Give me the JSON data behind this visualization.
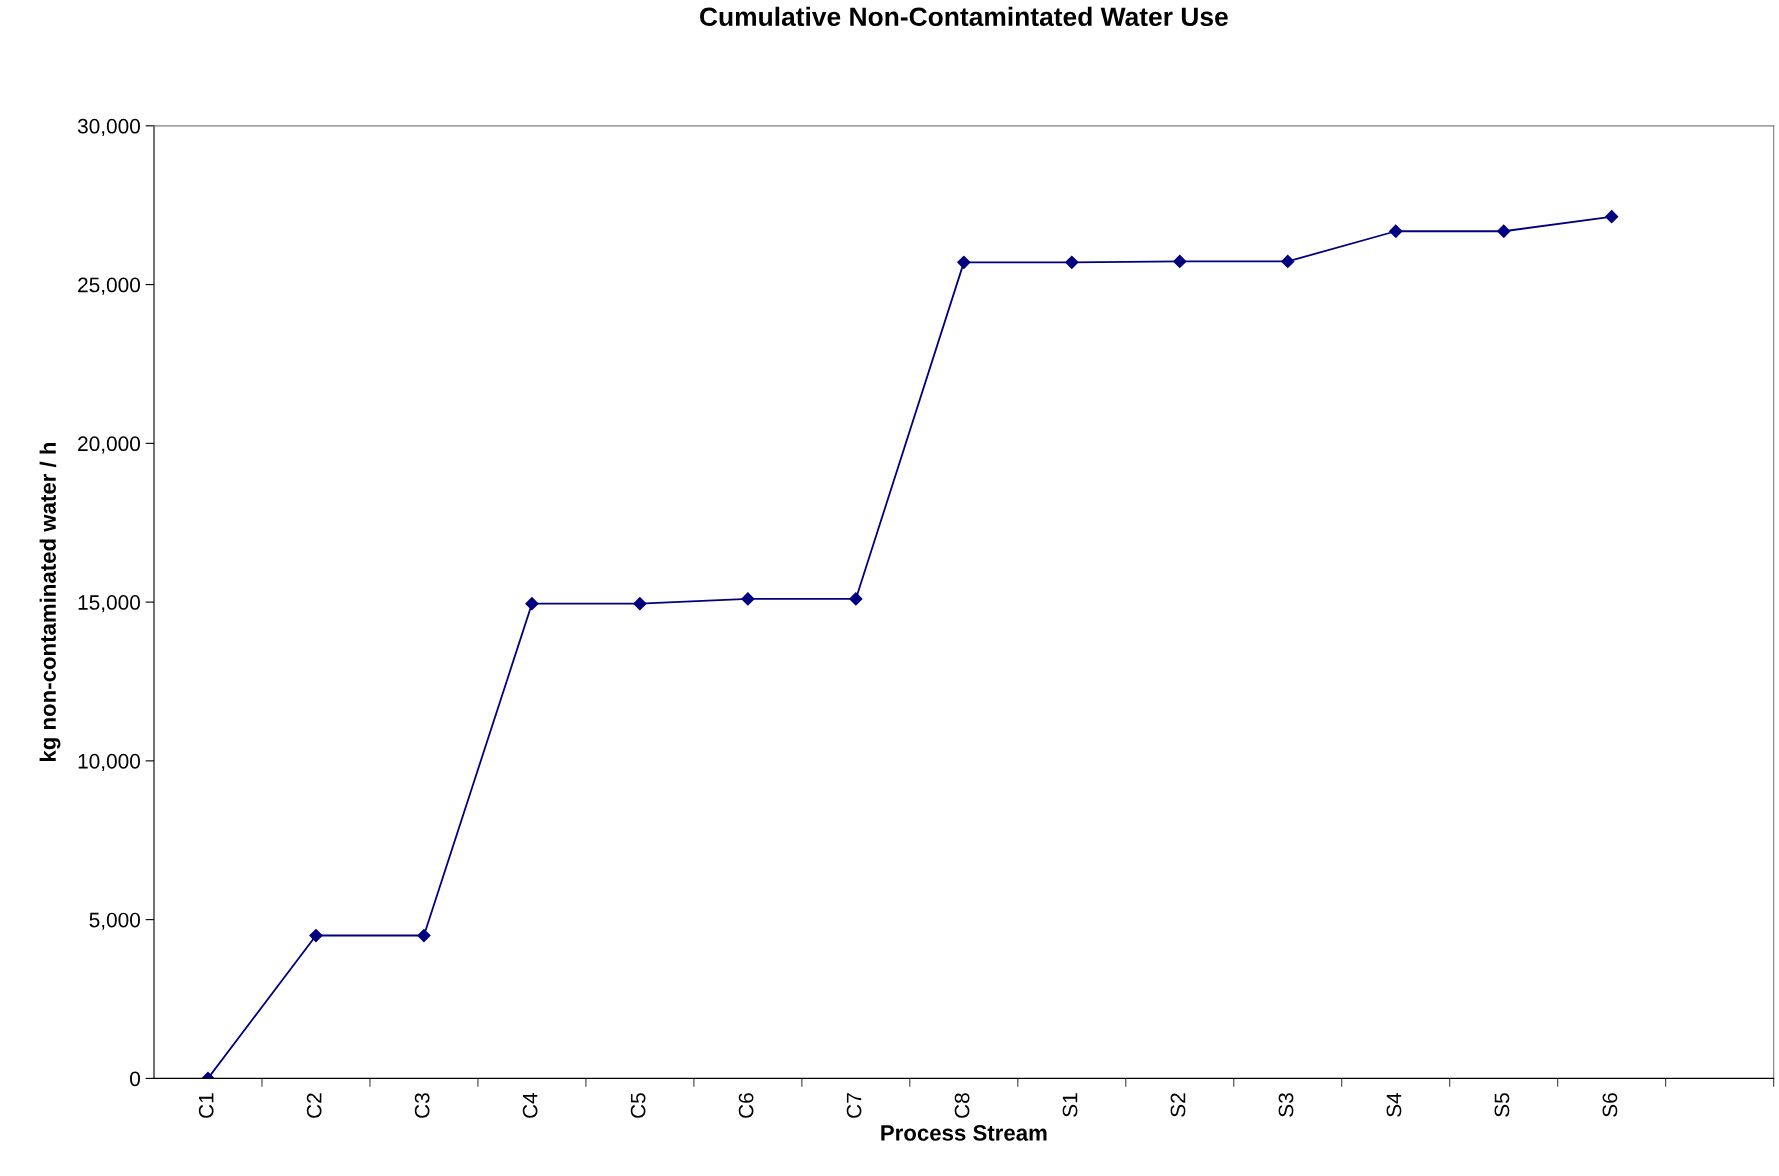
{
  "chart_data": {
    "type": "line",
    "title": "Cumulative Non-Contamintated Water Use",
    "xlabel": "Process Stream",
    "ylabel": "kg non-contaminated water / h",
    "categories": [
      "C1",
      "C2",
      "C3",
      "C4",
      "C5",
      "C6",
      "C7",
      "C8",
      "S1",
      "S2",
      "S3",
      "S4",
      "S5",
      "S6",
      null
    ],
    "series": [
      {
        "color": "#000080",
        "values": [
          0,
          4500,
          4500,
          14950,
          14950,
          15100,
          15100,
          25700,
          25700,
          25730,
          25730,
          26680,
          26680,
          27140,
          null
        ]
      }
    ],
    "ylim": [
      0,
      30000
    ],
    "yticks": [
      {
        "value": 0,
        "label": "0"
      },
      {
        "value": 5000,
        "label": "5,000"
      },
      {
        "value": 10000,
        "label": "10,000"
      },
      {
        "value": 15000,
        "label": "15,000"
      },
      {
        "value": 20000,
        "label": "20,000"
      },
      {
        "value": 25000,
        "label": "25,000"
      },
      {
        "value": 30000,
        "label": "30,000"
      }
    ],
    "marker": "diamond",
    "line_style": "solid",
    "grid": false,
    "legend": false
  }
}
